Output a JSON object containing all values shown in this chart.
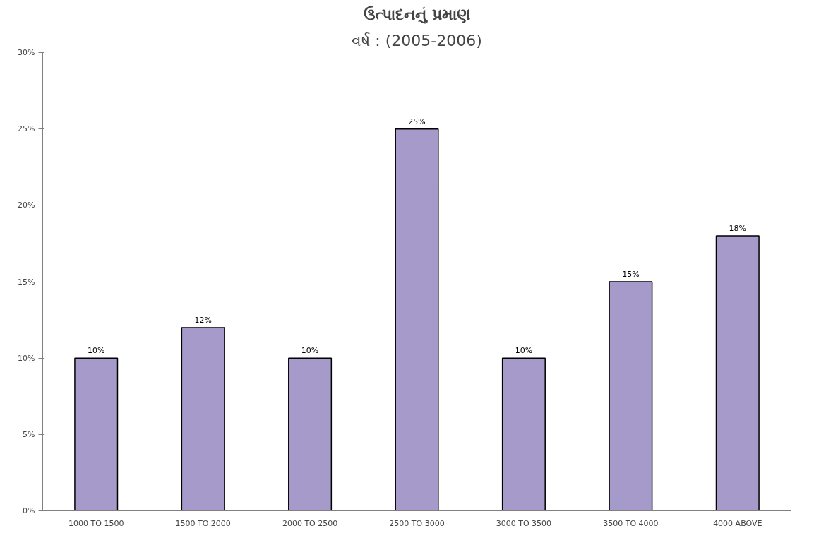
{
  "chart_data": {
    "type": "bar",
    "title": "ઉત્પાદનનું પ્રમાણ",
    "subtitle": "વર્ષ : (2005-2006)",
    "categories": [
      "1000 TO 1500",
      "1500 TO 2000",
      "2000 TO 2500",
      "2500 TO 3000",
      "3000 TO 3500",
      "3500 TO 4000",
      "4000 ABOVE"
    ],
    "values": [
      10,
      12,
      10,
      25,
      10,
      15,
      18
    ],
    "value_labels": [
      "10%",
      "12%",
      "10%",
      "25%",
      "10%",
      "15%",
      "18%"
    ],
    "color": "#a69acb",
    "ylim": [
      0,
      30
    ],
    "yticks": [
      {
        "value": 0,
        "label": "0%"
      },
      {
        "value": 5,
        "label": "5%"
      },
      {
        "value": 10,
        "label": "10%"
      },
      {
        "value": 15,
        "label": "15%"
      },
      {
        "value": 20,
        "label": "20%"
      },
      {
        "value": 25,
        "label": "25%"
      },
      {
        "value": 30,
        "label": "30%"
      }
    ],
    "grid": false
  }
}
